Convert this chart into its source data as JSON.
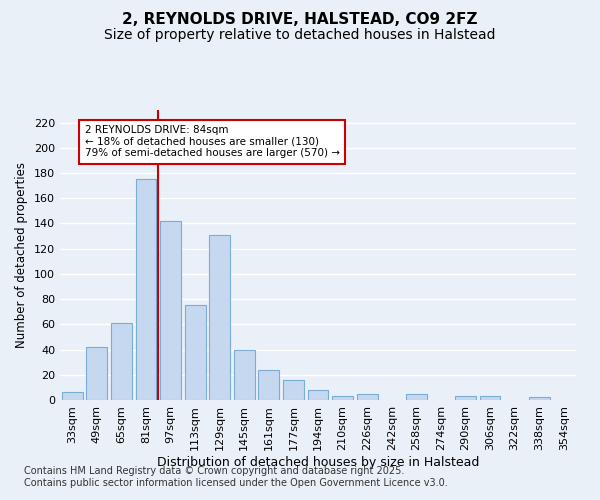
{
  "title": "2, REYNOLDS DRIVE, HALSTEAD, CO9 2FZ",
  "subtitle": "Size of property relative to detached houses in Halstead",
  "xlabel": "Distribution of detached houses by size in Halstead",
  "ylabel": "Number of detached properties",
  "categories": [
    "33sqm",
    "49sqm",
    "65sqm",
    "81sqm",
    "97sqm",
    "113sqm",
    "129sqm",
    "145sqm",
    "161sqm",
    "177sqm",
    "194sqm",
    "210sqm",
    "226sqm",
    "242sqm",
    "258sqm",
    "274sqm",
    "290sqm",
    "306sqm",
    "322sqm",
    "338sqm",
    "354sqm"
  ],
  "values": [
    6,
    42,
    61,
    175,
    142,
    75,
    131,
    40,
    24,
    16,
    8,
    3,
    5,
    0,
    5,
    0,
    3,
    3,
    0,
    2,
    0
  ],
  "bar_color": "#c5d8f0",
  "bar_edge_color": "#7badd4",
  "vline_color": "#cc0000",
  "vline_x": 3.5,
  "annotation_text": "2 REYNOLDS DRIVE: 84sqm\n← 18% of detached houses are smaller (130)\n79% of semi-detached houses are larger (570) →",
  "annotation_box_color": "#ffffff",
  "annotation_box_edge": "#cc0000",
  "ylim": [
    0,
    230
  ],
  "yticks": [
    0,
    20,
    40,
    60,
    80,
    100,
    120,
    140,
    160,
    180,
    200,
    220
  ],
  "bg_color": "#eaf0f8",
  "grid_color": "#ffffff",
  "footer": "Contains HM Land Registry data © Crown copyright and database right 2025.\nContains public sector information licensed under the Open Government Licence v3.0.",
  "title_fontsize": 11,
  "subtitle_fontsize": 10,
  "xlabel_fontsize": 9,
  "ylabel_fontsize": 8.5,
  "tick_fontsize": 8,
  "footer_fontsize": 7
}
